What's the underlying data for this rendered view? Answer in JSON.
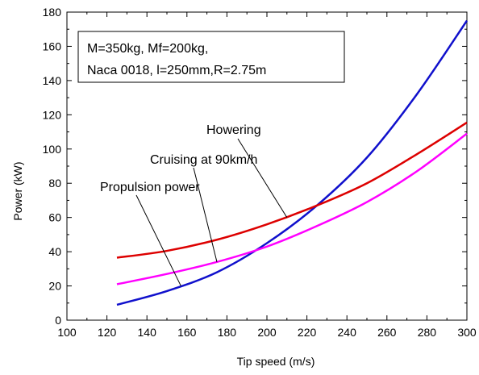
{
  "chart_data": {
    "type": "line",
    "title": "",
    "xlabel": "Tip speed (m/s)",
    "ylabel": "Power (kW)",
    "xlim": [
      100,
      300
    ],
    "ylim": [
      0,
      180
    ],
    "x_ticks": [
      "100",
      "120",
      "140",
      "160",
      "180",
      "200",
      "220",
      "240",
      "260",
      "280",
      "300"
    ],
    "y_ticks": [
      "0",
      "20",
      "40",
      "60",
      "80",
      "100",
      "120",
      "140",
      "160",
      "180"
    ],
    "x": [
      125,
      150,
      175,
      200,
      225,
      250,
      275,
      300
    ],
    "series": [
      {
        "color": "#1010cc",
        "values": [
          9,
          17,
          28,
          45,
          67,
          95,
          132,
          175
        ]
      },
      {
        "color": "#dd0000",
        "values": [
          36.5,
          40.5,
          47,
          56,
          67,
          80,
          97,
          115.5
        ]
      },
      {
        "color": "#ff00ff",
        "values": [
          21,
          27,
          34,
          43,
          55,
          69,
          87,
          109
        ]
      }
    ],
    "info_box": [
      "M=350kg, Mf=200kg,",
      "Naca 0018, l=250mm,R=2.75m"
    ],
    "annotations": [
      {
        "text": "Howering",
        "target": [
          210,
          60
        ]
      },
      {
        "text": "Cruising at 90km/h",
        "target": [
          175,
          34
        ]
      },
      {
        "text": "Propulsion power",
        "target": [
          157,
          20
        ]
      }
    ],
    "grid": false,
    "legend": "none"
  }
}
